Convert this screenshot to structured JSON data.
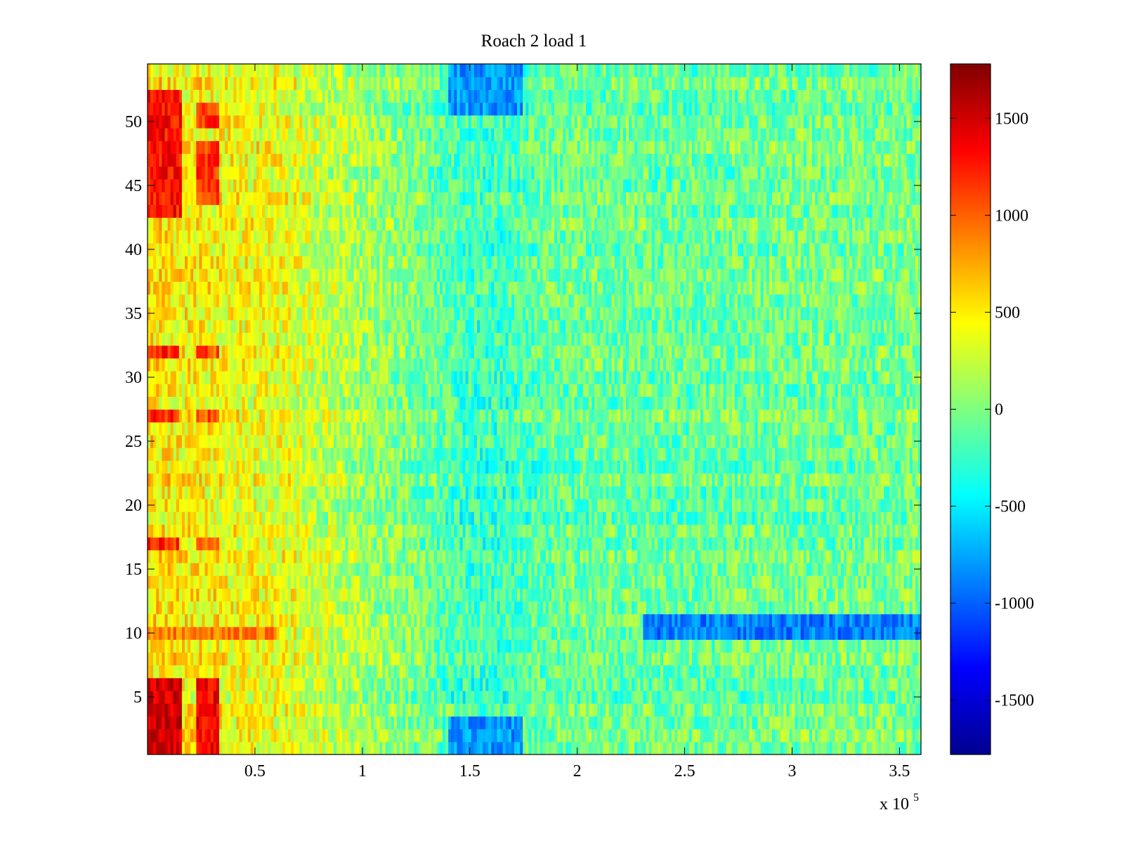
{
  "chart_data": {
    "type": "heatmap",
    "title": "Roach 2 load 1",
    "xlabel": "",
    "ylabel": "",
    "x_exponent_label": "x 10",
    "x_exponent": "5",
    "xlim": [
      0,
      360000
    ],
    "ylim": [
      0.5,
      54.5
    ],
    "x_ticks": [
      0.5,
      1,
      1.5,
      2,
      2.5,
      3,
      3.5
    ],
    "x_tick_labels": [
      "0.5",
      "1",
      "1.5",
      "2",
      "2.5",
      "3",
      "3.5"
    ],
    "y_ticks": [
      5,
      10,
      15,
      20,
      25,
      30,
      35,
      40,
      45,
      50
    ],
    "y_tick_labels": [
      "5",
      "10",
      "15",
      "20",
      "25",
      "30",
      "35",
      "40",
      "45",
      "50"
    ],
    "rows": 54,
    "colorbar": {
      "colormap": "jet",
      "clim": [
        -1780,
        1780
      ],
      "ticks": [
        -1500,
        -1000,
        -500,
        0,
        500,
        1000,
        1500
      ],
      "tick_labels": [
        "-1500",
        "-1000",
        "-500",
        "0",
        "500",
        "1000",
        "1500"
      ]
    },
    "trend_profile": {
      "x": [
        0,
        5000,
        15000,
        25000,
        35000,
        50000,
        65000,
        80000,
        95000,
        110000,
        125000,
        140000,
        155000,
        170000,
        185000,
        200000,
        220000,
        240000,
        260000,
        280000,
        300000,
        320000,
        340000,
        360000
      ],
      "value": [
        520,
        520,
        460,
        460,
        420,
        380,
        360,
        230,
        130,
        40,
        -40,
        -180,
        -260,
        -210,
        -120,
        -90,
        -90,
        -100,
        -110,
        -80,
        -70,
        -80,
        -60,
        -40
      ]
    },
    "hot_spots": [
      {
        "x_range": [
          0,
          16000
        ],
        "rows": [
          1,
          2,
          3,
          4,
          5,
          6
        ],
        "value": 1500
      },
      {
        "x_range": [
          23000,
          33000
        ],
        "rows": [
          1,
          2,
          3,
          4,
          5,
          6
        ],
        "value": 1350
      },
      {
        "x_range": [
          0,
          16000
        ],
        "rows": [
          43,
          44,
          45,
          46,
          47,
          48,
          49,
          50,
          51,
          52
        ],
        "value": 1300
      },
      {
        "x_range": [
          23000,
          33000
        ],
        "rows": [
          44,
          45,
          46,
          47,
          48,
          50,
          51
        ],
        "value": 1150
      },
      {
        "x_range": [
          0,
          14000
        ],
        "rows": [
          17,
          27,
          32
        ],
        "value": 1200
      },
      {
        "x_range": [
          23000,
          33000
        ],
        "rows": [
          17,
          27,
          32
        ],
        "value": 1050
      },
      {
        "x_range": [
          0,
          60000
        ],
        "rows": [
          10
        ],
        "value": 900
      },
      {
        "x_range": [
          230000,
          360000
        ],
        "rows": [
          10,
          11
        ],
        "value": -900
      },
      {
        "x_range": [
          140000,
          175000
        ],
        "rows": [
          1,
          2,
          3,
          51,
          52,
          53,
          54
        ],
        "value": -800
      }
    ]
  }
}
